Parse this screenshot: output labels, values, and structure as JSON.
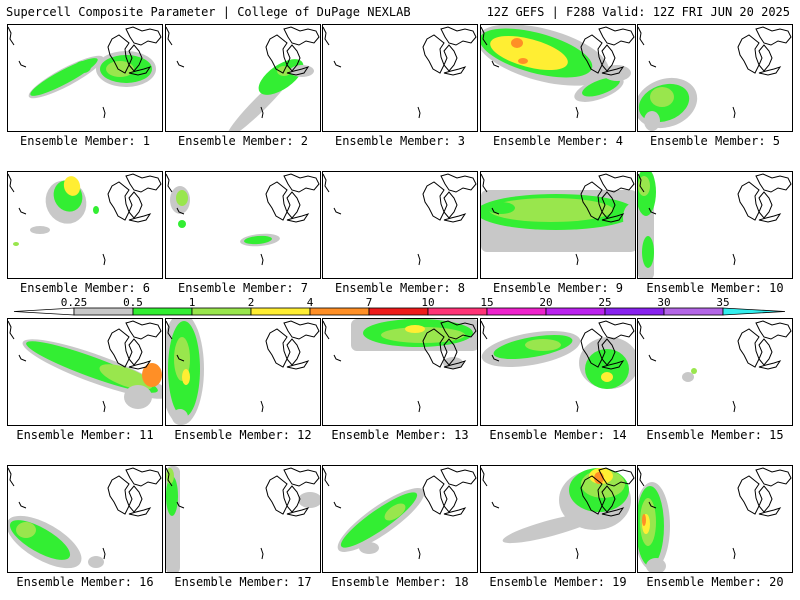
{
  "header": {
    "title_left": "Supercell Composite Parameter | College of DuPage NEXLAB",
    "title_right": "12Z GEFS | F288 Valid: 12Z FRI JUN 20 2025"
  },
  "member_label_prefix": "Ensemble Member: ",
  "members": [
    {
      "label": "Ensemble Member: 1"
    },
    {
      "label": "Ensemble Member: 2"
    },
    {
      "label": "Ensemble Member: 3"
    },
    {
      "label": "Ensemble Member: 4"
    },
    {
      "label": "Ensemble Member: 5"
    },
    {
      "label": "Ensemble Member: 6"
    },
    {
      "label": "Ensemble Member: 7"
    },
    {
      "label": "Ensemble Member: 8"
    },
    {
      "label": "Ensemble Member: 9"
    },
    {
      "label": "Ensemble Member: 10"
    },
    {
      "label": "Ensemble Member: 11"
    },
    {
      "label": "Ensemble Member: 12"
    },
    {
      "label": "Ensemble Member: 13"
    },
    {
      "label": "Ensemble Member: 14"
    },
    {
      "label": "Ensemble Member: 15"
    },
    {
      "label": "Ensemble Member: 16"
    },
    {
      "label": "Ensemble Member: 17"
    },
    {
      "label": "Ensemble Member: 18"
    },
    {
      "label": "Ensemble Member: 19"
    },
    {
      "label": "Ensemble Member: 20"
    }
  ],
  "colorbar": {
    "labels": [
      "0.25",
      "0.5",
      "1",
      "2",
      "4",
      "7",
      "10",
      "15",
      "20",
      "25",
      "30",
      "35"
    ],
    "colors": [
      "#ffffff",
      "#c8c8c8",
      "#33ee33",
      "#99e64d",
      "#ffee33",
      "#ff8f26",
      "#ee1a1a",
      "#ff3377",
      "#ee22cc",
      "#bb22ee",
      "#8822ee",
      "#b366e6",
      "#33eeee"
    ]
  }
}
